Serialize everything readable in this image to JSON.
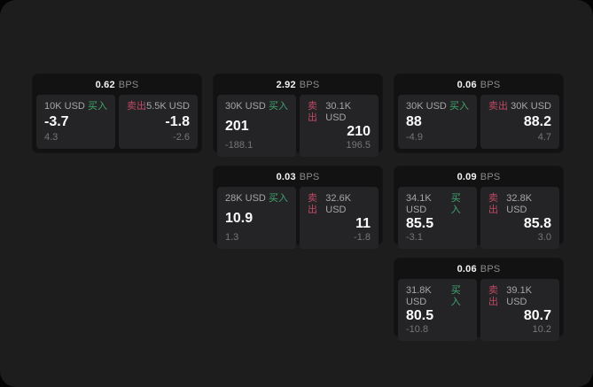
{
  "labels": {
    "bps": "BPS",
    "buy": "买入",
    "sell": "卖出"
  },
  "colors": {
    "outer_bg": "#050505",
    "panel_bg": "#1d1d1e",
    "card_bg": "#121212",
    "subpanel_bg": "#242426",
    "buy_green": "#3fa56c",
    "sell_red": "#c04a62",
    "value_white": "#fafafa",
    "label_gray": "#a6a6a6",
    "delta_gray": "#767676"
  },
  "cards": [
    {
      "bps": "0.62",
      "buy": {
        "size": "10K USD",
        "value": "-3.7",
        "delta": "4.3"
      },
      "sell": {
        "size": "5.5K USD",
        "value": "-1.8",
        "delta": "-2.6"
      }
    },
    {
      "bps": "2.92",
      "buy": {
        "size": "30K USD",
        "value": "201",
        "delta": "-188.1"
      },
      "sell": {
        "size": "30.1K USD",
        "value": "210",
        "delta": "196.5"
      }
    },
    {
      "bps": "0.06",
      "buy": {
        "size": "30K USD",
        "value": "88",
        "delta": "-4.9"
      },
      "sell": {
        "size": "30K USD",
        "value": "88.2",
        "delta": "4.7"
      }
    },
    {
      "bps": "0.03",
      "buy": {
        "size": "28K USD",
        "value": "10.9",
        "delta": "1.3"
      },
      "sell": {
        "size": "32.6K USD",
        "value": "11",
        "delta": "-1.8"
      }
    },
    {
      "bps": "0.09",
      "buy": {
        "size": "34.1K USD",
        "value": "85.5",
        "delta": "-3.1"
      },
      "sell": {
        "size": "32.8K USD",
        "value": "85.8",
        "delta": "3.0"
      }
    },
    {
      "bps": "0.06",
      "buy": {
        "size": "31.8K USD",
        "value": "80.5",
        "delta": "-10.8"
      },
      "sell": {
        "size": "39.1K USD",
        "value": "80.7",
        "delta": "10.2"
      }
    }
  ]
}
